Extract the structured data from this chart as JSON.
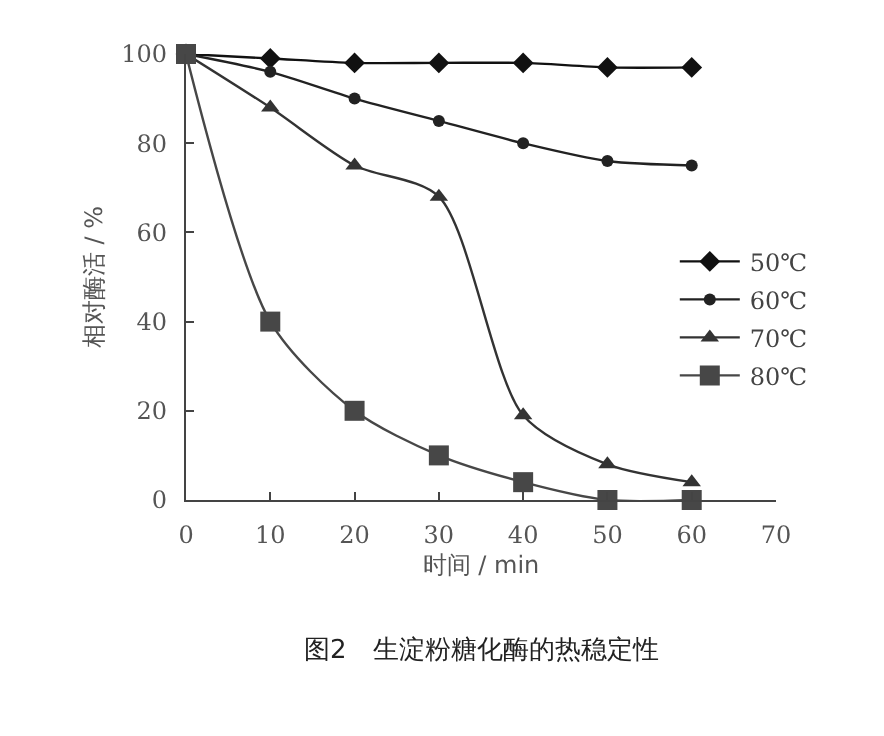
{
  "chart_data": {
    "type": "line",
    "xlabel": "时间 / min",
    "ylabel": "相对酶活 / %",
    "x": [
      0,
      10,
      20,
      30,
      40,
      50,
      60
    ],
    "series": [
      {
        "name": "50℃",
        "color": "#111111",
        "marker": "diamond",
        "values": [
          100,
          99,
          98,
          98,
          98,
          97,
          97
        ]
      },
      {
        "name": "60℃",
        "color": "#222222",
        "marker": "circle",
        "values": [
          100,
          96,
          90,
          85,
          80,
          76,
          75
        ]
      },
      {
        "name": "70℃",
        "color": "#333333",
        "marker": "triangle",
        "values": [
          100,
          88,
          75,
          68,
          19,
          8,
          4
        ]
      },
      {
        "name": "80℃",
        "color": "#474747",
        "marker": "square",
        "values": [
          100,
          40,
          20,
          10,
          4,
          0,
          0
        ]
      }
    ],
    "xlim": [
      0,
      70
    ],
    "xticks": [
      0,
      10,
      20,
      30,
      40,
      50,
      60,
      70
    ],
    "ylim": [
      0,
      100
    ],
    "yticks": [
      0,
      20,
      40,
      60,
      80,
      100
    ],
    "legend": "right",
    "line_style": "solid",
    "annotations": [
      "图2　生淀粉糖化酶的热稳定性"
    ]
  }
}
